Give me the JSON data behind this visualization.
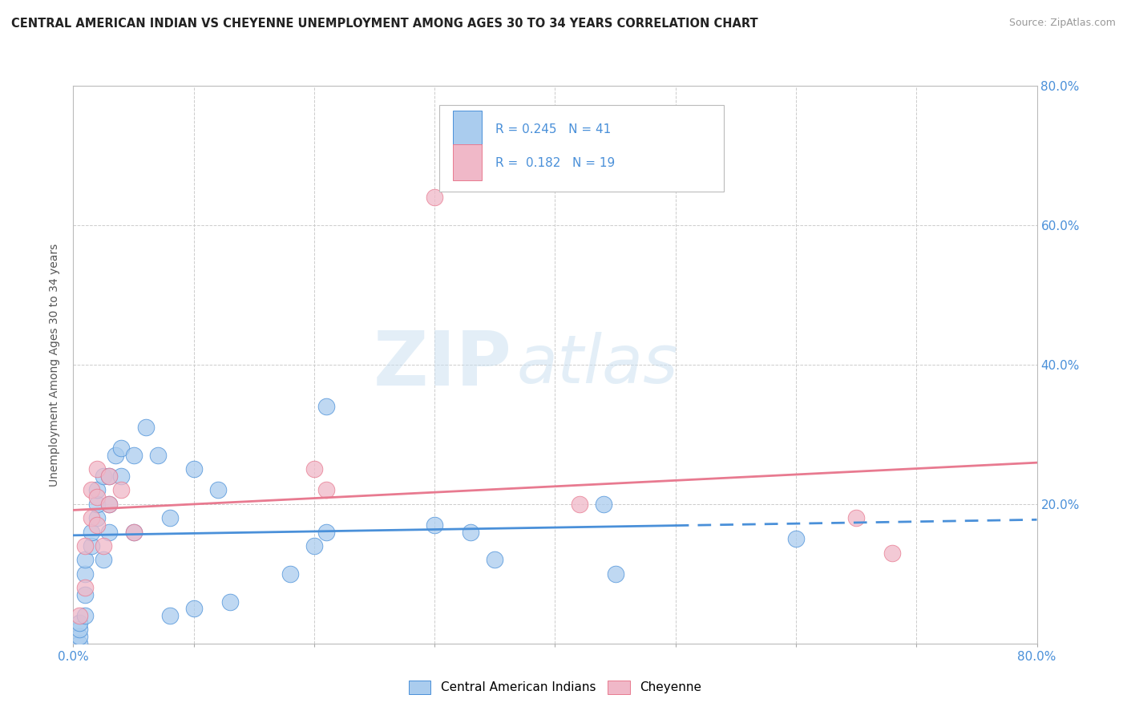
{
  "title": "CENTRAL AMERICAN INDIAN VS CHEYENNE UNEMPLOYMENT AMONG AGES 30 TO 34 YEARS CORRELATION CHART",
  "source": "Source: ZipAtlas.com",
  "ylabel": "Unemployment Among Ages 30 to 34 years",
  "xlim": [
    0.0,
    0.8
  ],
  "ylim": [
    0.0,
    0.8
  ],
  "legend_label1": "Central American Indians",
  "legend_label2": "Cheyenne",
  "r1": 0.245,
  "n1": 41,
  "r2": 0.182,
  "n2": 19,
  "blue_scatter": [
    [
      0.005,
      0.0
    ],
    [
      0.005,
      0.01
    ],
    [
      0.005,
      0.02
    ],
    [
      0.005,
      0.03
    ],
    [
      0.01,
      0.04
    ],
    [
      0.01,
      0.07
    ],
    [
      0.01,
      0.1
    ],
    [
      0.01,
      0.12
    ],
    [
      0.015,
      0.14
    ],
    [
      0.015,
      0.16
    ],
    [
      0.02,
      0.18
    ],
    [
      0.02,
      0.2
    ],
    [
      0.02,
      0.22
    ],
    [
      0.025,
      0.24
    ],
    [
      0.025,
      0.12
    ],
    [
      0.03,
      0.16
    ],
    [
      0.03,
      0.2
    ],
    [
      0.03,
      0.24
    ],
    [
      0.035,
      0.27
    ],
    [
      0.04,
      0.28
    ],
    [
      0.04,
      0.24
    ],
    [
      0.05,
      0.27
    ],
    [
      0.05,
      0.16
    ],
    [
      0.06,
      0.31
    ],
    [
      0.07,
      0.27
    ],
    [
      0.08,
      0.18
    ],
    [
      0.08,
      0.04
    ],
    [
      0.1,
      0.25
    ],
    [
      0.1,
      0.05
    ],
    [
      0.12,
      0.22
    ],
    [
      0.13,
      0.06
    ],
    [
      0.18,
      0.1
    ],
    [
      0.2,
      0.14
    ],
    [
      0.21,
      0.34
    ],
    [
      0.21,
      0.16
    ],
    [
      0.3,
      0.17
    ],
    [
      0.33,
      0.16
    ],
    [
      0.35,
      0.12
    ],
    [
      0.44,
      0.2
    ],
    [
      0.45,
      0.1
    ],
    [
      0.6,
      0.15
    ]
  ],
  "pink_scatter": [
    [
      0.005,
      0.04
    ],
    [
      0.01,
      0.08
    ],
    [
      0.01,
      0.14
    ],
    [
      0.015,
      0.18
    ],
    [
      0.015,
      0.22
    ],
    [
      0.02,
      0.17
    ],
    [
      0.02,
      0.21
    ],
    [
      0.02,
      0.25
    ],
    [
      0.025,
      0.14
    ],
    [
      0.03,
      0.2
    ],
    [
      0.03,
      0.24
    ],
    [
      0.04,
      0.22
    ],
    [
      0.05,
      0.16
    ],
    [
      0.2,
      0.25
    ],
    [
      0.21,
      0.22
    ],
    [
      0.3,
      0.64
    ],
    [
      0.42,
      0.2
    ],
    [
      0.65,
      0.18
    ],
    [
      0.68,
      0.13
    ]
  ],
  "title_color": "#222222",
  "source_color": "#999999",
  "blue_line_color": "#4a90d9",
  "pink_line_color": "#e87a90",
  "blue_scatter_color": "#aaccee",
  "pink_scatter_color": "#f0b8c8",
  "watermark_zip": "ZIP",
  "watermark_atlas": "atlas",
  "background_color": "#ffffff",
  "grid_color": "#cccccc"
}
